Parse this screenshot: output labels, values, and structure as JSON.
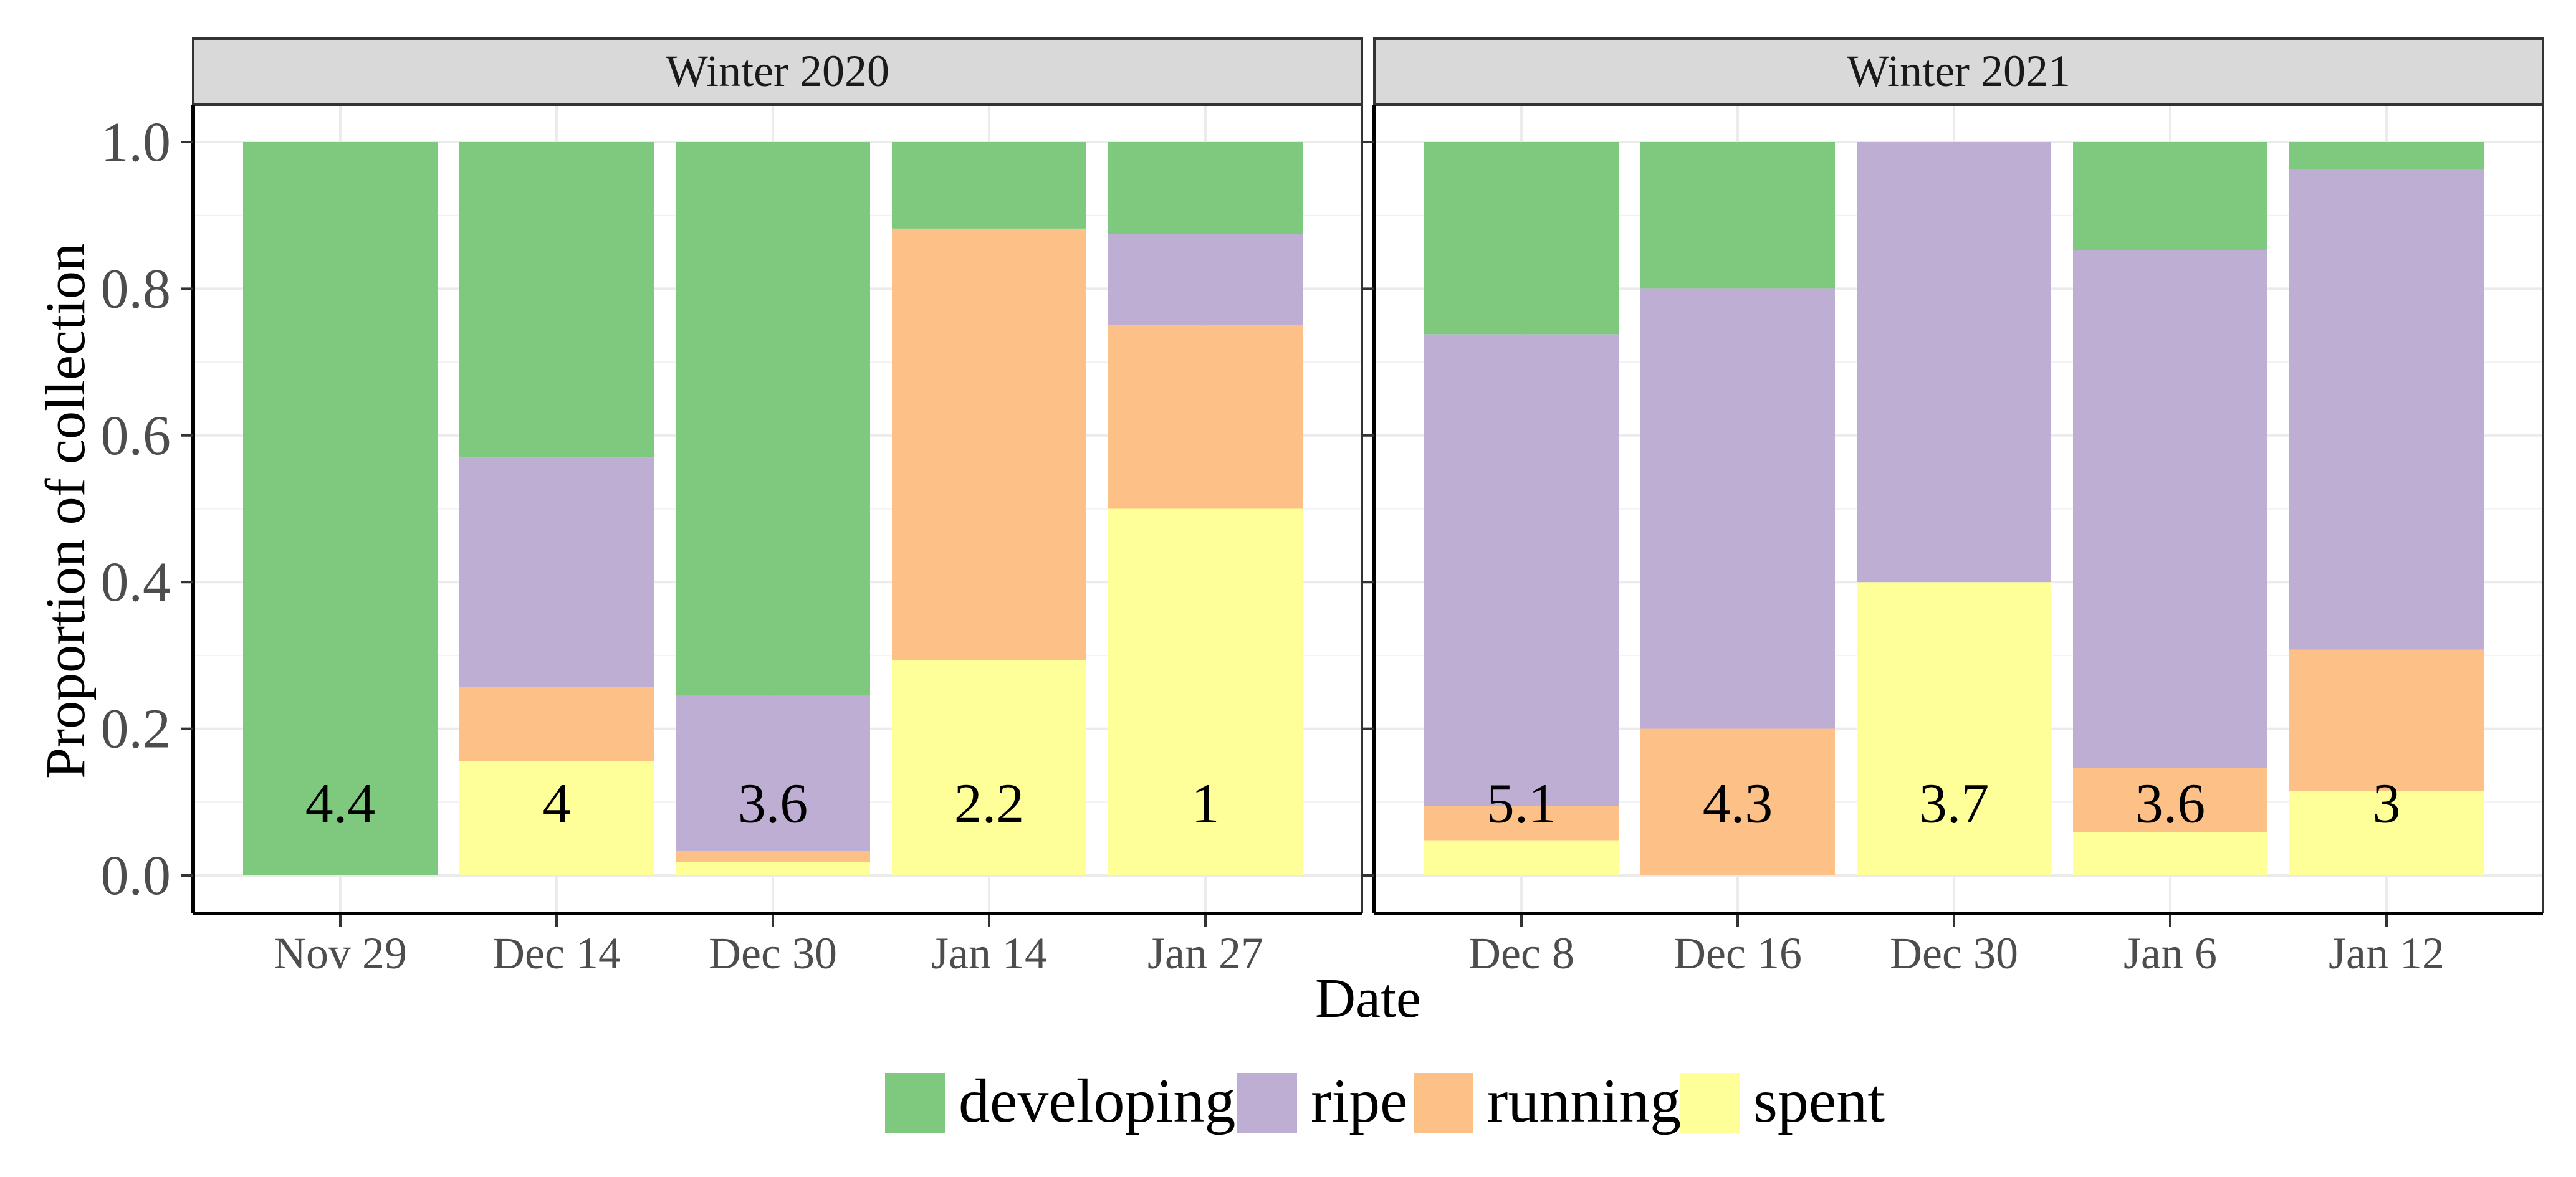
{
  "chart_data": {
    "type": "bar",
    "stacked": true,
    "xlabel": "Date",
    "ylabel": "Proportion of collection",
    "ylim": [
      0,
      1
    ],
    "yticks": [
      "0.0",
      "0.2",
      "0.4",
      "0.6",
      "0.8",
      "1.0"
    ],
    "grid": true,
    "legend_position": "bottom",
    "colors": {
      "developing": "#7fc97f",
      "ripe": "#beaed4",
      "running": "#fdc086",
      "spent": "#ffff99"
    },
    "series_order": [
      "spent",
      "running",
      "ripe",
      "developing"
    ],
    "legend": [
      "developing",
      "ripe",
      "running",
      "spent"
    ],
    "panels": [
      {
        "title": "Winter 2020",
        "categories": [
          "Nov 29",
          "Dec 14",
          "Dec 30",
          "Jan 14",
          "Jan 27"
        ],
        "labels": [
          "4.4",
          "4",
          "3.6",
          "2.2",
          "1"
        ],
        "series": [
          {
            "name": "spent",
            "values": [
              0,
              0.156,
              0.018,
              0.294,
              0.5
            ]
          },
          {
            "name": "running",
            "values": [
              0,
              0.101,
              0.016,
              0.588,
              0.25
            ]
          },
          {
            "name": "ripe",
            "values": [
              0,
              0.313,
              0.211,
              0,
              0.125
            ]
          },
          {
            "name": "developing",
            "values": [
              1,
              0.43,
              0.755,
              0.118,
              0.125
            ]
          }
        ]
      },
      {
        "title": "Winter 2021",
        "categories": [
          "Dec 8",
          "Dec 16",
          "Dec 30",
          "Jan 6",
          "Jan 12"
        ],
        "labels": [
          "5.1",
          "4.3",
          "3.7",
          "3.6",
          "3"
        ],
        "series": [
          {
            "name": "spent",
            "values": [
              0.048,
              0,
              0.4,
              0.059,
              0.115
            ]
          },
          {
            "name": "running",
            "values": [
              0.047,
              0.2,
              0,
              0.088,
              0.193
            ]
          },
          {
            "name": "ripe",
            "values": [
              0.643,
              0.6,
              0.6,
              0.706,
              0.654
            ]
          },
          {
            "name": "developing",
            "values": [
              0.262,
              0.2,
              0,
              0.147,
              0.038
            ]
          }
        ]
      }
    ]
  }
}
